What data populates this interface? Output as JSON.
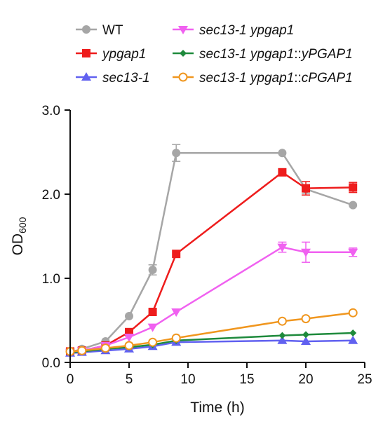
{
  "chart_data": {
    "type": "line",
    "xlabel": "Time (h)",
    "ylabel_main": "OD",
    "ylabel_sub": "600",
    "xlim": [
      0,
      25
    ],
    "ylim": [
      0,
      3.0
    ],
    "x_ticks": [
      0,
      5,
      10,
      15,
      20,
      25
    ],
    "x_tick_labels": [
      "0",
      "5",
      "10",
      "15",
      "20",
      "25"
    ],
    "y_ticks": [
      0,
      1.0,
      2.0,
      3.0
    ],
    "y_tick_labels": [
      "0.0",
      "1.0",
      "2.0",
      "3.0"
    ],
    "grid": false,
    "legend_position": "top",
    "series": [
      {
        "legend_parts": [
          {
            "text": "WT",
            "italic": false
          }
        ],
        "color": "#a6a6a6",
        "marker": "circle",
        "x": [
          0,
          1,
          3,
          5,
          7,
          9,
          18,
          20,
          24
        ],
        "y": [
          0.12,
          0.16,
          0.25,
          0.55,
          1.1,
          2.49,
          2.49,
          2.06,
          1.87
        ],
        "err": [
          0,
          0,
          0,
          0,
          0.06,
          0.1,
          0,
          0.05,
          0
        ]
      },
      {
        "legend_parts": [
          {
            "text": "ypgap1",
            "italic": true
          }
        ],
        "color": "#ee1c1c",
        "marker": "square",
        "x": [
          0,
          1,
          3,
          5,
          7,
          9,
          18,
          20,
          24
        ],
        "y": [
          0.13,
          0.14,
          0.2,
          0.36,
          0.6,
          1.29,
          2.26,
          2.07,
          2.08
        ],
        "err": [
          0,
          0,
          0,
          0,
          0,
          0,
          0,
          0.08,
          0.06
        ]
      },
      {
        "legend_parts": [
          {
            "text": "sec13-1",
            "italic": true
          }
        ],
        "color": "#6161f0",
        "marker": "triangle-up",
        "x": [
          0,
          1,
          3,
          5,
          7,
          9,
          18,
          20,
          24
        ],
        "y": [
          0.11,
          0.12,
          0.14,
          0.16,
          0.19,
          0.24,
          0.26,
          0.25,
          0.26
        ],
        "err": [
          0,
          0,
          0,
          0,
          0,
          0,
          0,
          0,
          0
        ]
      },
      {
        "legend_parts": [
          {
            "text": "sec13-1 ypgap1",
            "italic": true
          }
        ],
        "color": "#f061f0",
        "marker": "triangle-down",
        "x": [
          0,
          1,
          3,
          5,
          7,
          9,
          18,
          20,
          24
        ],
        "y": [
          0.12,
          0.14,
          0.2,
          0.3,
          0.42,
          0.6,
          1.37,
          1.31,
          1.31
        ],
        "err": [
          0,
          0,
          0,
          0,
          0,
          0,
          0.06,
          0.12,
          0.05
        ]
      },
      {
        "legend_parts": [
          {
            "text": "sec13-1 ypgap1",
            "italic": true
          },
          {
            "text": "::",
            "italic": false
          },
          {
            "text": "yPGAP1",
            "italic": true
          }
        ],
        "color": "#1e8a3c",
        "marker": "diamond",
        "x": [
          0,
          1,
          3,
          5,
          7,
          9,
          18,
          20,
          24
        ],
        "y": [
          0.12,
          0.13,
          0.16,
          0.18,
          0.21,
          0.26,
          0.32,
          0.33,
          0.35
        ],
        "err": [
          0,
          0,
          0,
          0,
          0,
          0,
          0,
          0,
          0
        ]
      },
      {
        "legend_parts": [
          {
            "text": "sec13-1 ypgap1",
            "italic": true
          },
          {
            "text": "::",
            "italic": false
          },
          {
            "text": "cPGAP1",
            "italic": true
          }
        ],
        "color": "#f0961e",
        "marker": "circle-open",
        "x": [
          0,
          1,
          3,
          5,
          7,
          9,
          18,
          20,
          24
        ],
        "y": [
          0.13,
          0.14,
          0.17,
          0.2,
          0.24,
          0.29,
          0.49,
          0.52,
          0.59
        ],
        "err": [
          0,
          0,
          0,
          0,
          0,
          0,
          0,
          0,
          0
        ]
      }
    ]
  }
}
